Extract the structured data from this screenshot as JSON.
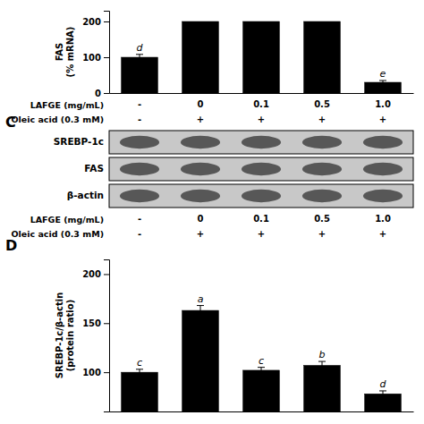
{
  "chart_data": [
    {
      "type": "bar",
      "categories": [
        "-",
        "0",
        "0.1",
        "0.5",
        "1.0"
      ],
      "xlabel": "LAFGE (mg/mL)",
      "ylabel": "FAS\n(% mRNA)",
      "values": [
        100,
        200,
        200,
        200,
        30
      ],
      "errors": [
        8,
        0,
        0,
        0,
        5
      ],
      "color": "#000000",
      "ylim": [
        0,
        230
      ],
      "yticks": [
        0,
        100,
        200
      ],
      "annotations": [
        {
          "text": "d",
          "category": 0
        },
        {
          "text": "e",
          "category": 4
        },
        {
          "text": "Oleic acid (0.3 mM)",
          "labels": [
            "-",
            "+",
            "+",
            "+",
            "+"
          ]
        }
      ]
    },
    {
      "type": "blot",
      "title": "C",
      "categories": [
        "-",
        "0",
        "0.1",
        "0.5",
        "1.0"
      ],
      "xlabel": "LAFGE (mg/mL)",
      "annotations": [
        {
          "text": "SREBP-1c"
        },
        {
          "text": "FAS"
        },
        {
          "text": "β-actin"
        },
        {
          "text": "Oleic acid (0.3 mM)",
          "labels": [
            "-",
            "+",
            "+",
            "+",
            "+"
          ]
        }
      ]
    },
    {
      "type": "bar",
      "title": "D",
      "categories": [
        null,
        null,
        null,
        null,
        null
      ],
      "ylabel": "SREBP-1c/β-actin\n(protein ratio)",
      "values": [
        100,
        163,
        102,
        107,
        78
      ],
      "errors": [
        3,
        5,
        3,
        4,
        3
      ],
      "color": "#000000",
      "ylim": [
        60,
        215
      ],
      "yticks": [
        100,
        150,
        200
      ],
      "annotations": [
        {
          "text": "c",
          "category": 0
        },
        {
          "text": "a",
          "category": 1
        },
        {
          "text": "c",
          "category": 2
        },
        {
          "text": "b",
          "category": 3
        },
        {
          "text": "d",
          "category": 4
        }
      ]
    }
  ]
}
